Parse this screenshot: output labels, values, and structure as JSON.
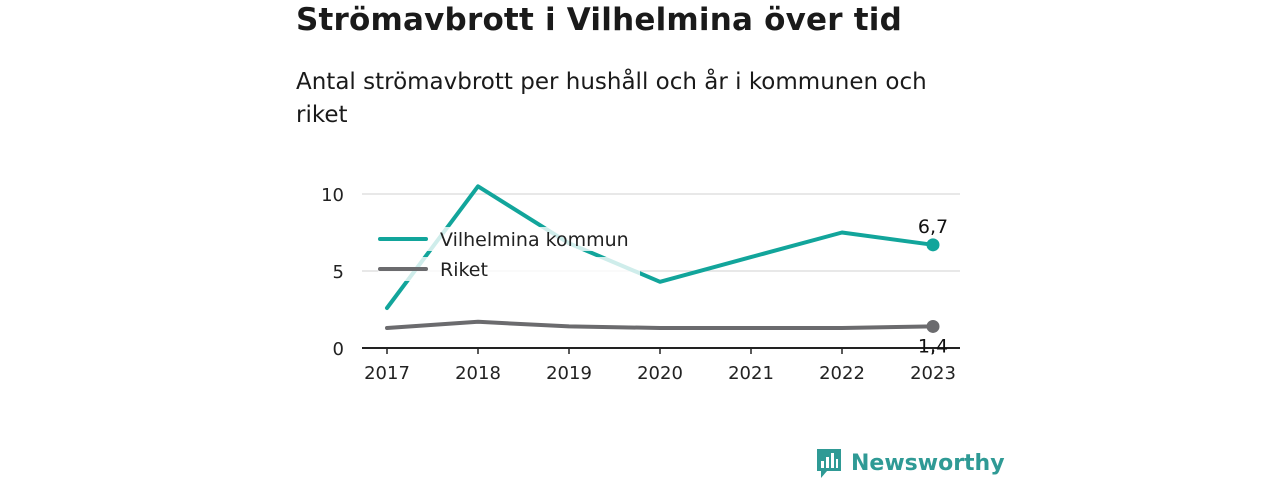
{
  "title": "Strömavbrott i Vilhelmina över tid",
  "subtitle": "Antal strömavbrott per hushåll och år i kommunen och riket",
  "brand": {
    "name": "Newsworthy",
    "logo_icon": "bar-chart-speech-bubble-icon",
    "color": "#2f9a95"
  },
  "chart_data": {
    "type": "line",
    "x": [
      "2017",
      "2018",
      "2019",
      "2020",
      "2021",
      "2022",
      "2023"
    ],
    "series": [
      {
        "name": "Vilhelmina kommun",
        "color": "#12a59b",
        "values": [
          2.6,
          10.5,
          6.8,
          4.3,
          5.9,
          7.5,
          6.7
        ],
        "end_label": "6,7"
      },
      {
        "name": "Riket",
        "color": "#6b6b6e",
        "values": [
          1.3,
          1.7,
          1.4,
          1.3,
          1.3,
          1.3,
          1.4
        ],
        "end_label": "1,4"
      }
    ],
    "y_ticks": [
      "0",
      "5",
      "10"
    ],
    "ylim": [
      0,
      10.5
    ],
    "grid": true,
    "legend_placement": "top-left"
  }
}
